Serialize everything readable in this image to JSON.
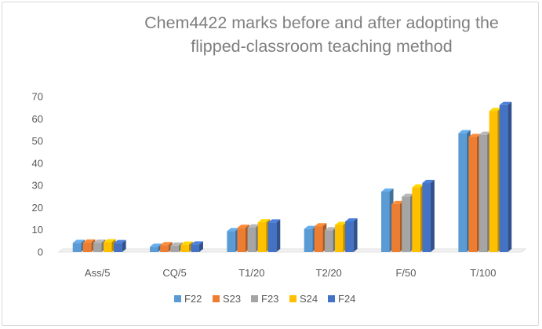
{
  "chart_data": {
    "type": "bar",
    "title_lines": [
      "Chem4422 marks before and after adopting the",
      "flipped-classroom teaching method"
    ],
    "categories": [
      "Ass/5",
      "CQ/5",
      "T1/20",
      "T2/20",
      "F/50",
      "T/100"
    ],
    "ylim": [
      0,
      70
    ],
    "yticks": [
      "0",
      "10",
      "20",
      "30",
      "40",
      "50",
      "60",
      "70"
    ],
    "grid": false,
    "legend_position": "bottom",
    "series": [
      {
        "name": "F22",
        "color": "#5b9bd5",
        "values": [
          4.1,
          2.4,
          9.4,
          10.4,
          27.2,
          53.5
        ]
      },
      {
        "name": "S23",
        "color": "#ed7d31",
        "values": [
          4.3,
          3.1,
          10.9,
          11.6,
          21.6,
          51.8
        ]
      },
      {
        "name": "F23",
        "color": "#a5a5a5",
        "values": [
          4.2,
          2.9,
          11.1,
          9.8,
          24.9,
          52.8
        ]
      },
      {
        "name": "S24",
        "color": "#ffc000",
        "values": [
          4.4,
          3.3,
          13.4,
          12.2,
          29.1,
          63.5
        ]
      },
      {
        "name": "F24",
        "color": "#4472c4",
        "values": [
          4.0,
          3.4,
          13.3,
          13.8,
          31.1,
          66.2
        ]
      }
    ]
  }
}
